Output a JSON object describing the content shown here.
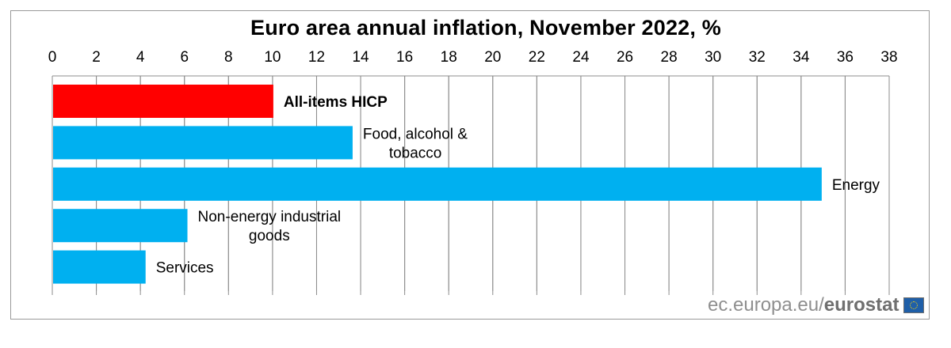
{
  "chart_data": {
    "type": "bar",
    "orientation": "horizontal",
    "title": "Euro area annual inflation,  November 2022, %",
    "xlabel": "",
    "ylabel": "",
    "xlim": [
      0,
      38
    ],
    "x_ticks": [
      0,
      2,
      4,
      6,
      8,
      10,
      12,
      14,
      16,
      18,
      20,
      22,
      24,
      26,
      28,
      30,
      32,
      34,
      36,
      38
    ],
    "axis_position": "top",
    "grid": "vertical",
    "categories": [
      [
        "All-items HICP"
      ],
      [
        "Food, alcohol &",
        "tobacco"
      ],
      [
        "Energy"
      ],
      [
        "Non-energy industrial",
        "goods"
      ],
      [
        "Services"
      ]
    ],
    "values": [
      10.0,
      13.6,
      34.9,
      6.1,
      4.2
    ],
    "colors": [
      "#ff0000",
      "#00b0f0",
      "#00b0f0",
      "#00b0f0",
      "#00b0f0"
    ]
  },
  "source": {
    "prefix": "ec.europa.eu/",
    "brand": "eurostat"
  }
}
